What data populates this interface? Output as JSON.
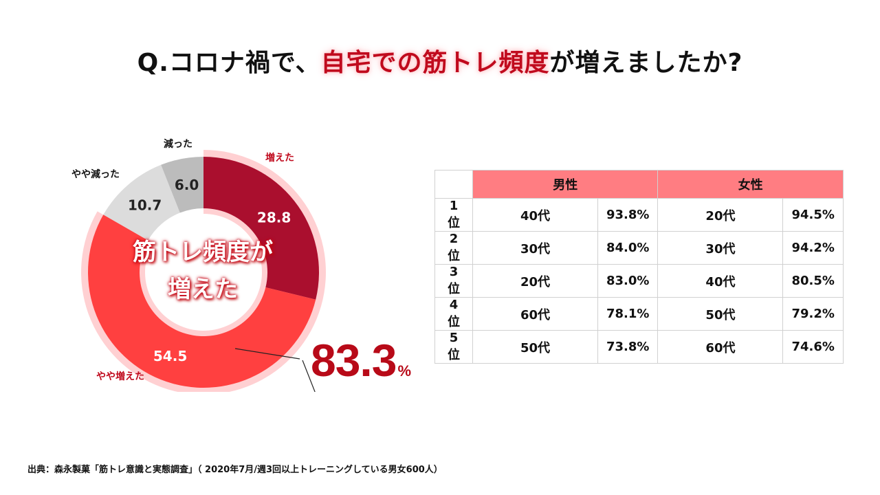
{
  "header": {
    "title_pre": "Q.コロナ禍で、",
    "title_highlight": "自宅での筋トレ頻度",
    "title_post": "が増えましたか?"
  },
  "chart_data": {
    "type": "pie",
    "variant": "donut",
    "categories": [
      "増えた",
      "やや増えた",
      "やや減った",
      "減った"
    ],
    "values": [
      28.8,
      54.5,
      10.7,
      6.0
    ],
    "value_labels": [
      "28.8",
      "54.5",
      "10.7",
      "6.0"
    ],
    "colors": [
      "#aa0f2e",
      "#ff4040",
      "#dcdcdc",
      "#bcbcbc"
    ],
    "label_colors": [
      "#c00a1d",
      "#c00a1d",
      "#111111",
      "#111111"
    ],
    "halo_color": "#ffd0d2",
    "center_text": [
      "筋トレ頻度が",
      "増えた"
    ],
    "total_value": "83.3",
    "total_unit": "%"
  },
  "table": {
    "headers": [
      "男性",
      "女性"
    ],
    "rows": [
      {
        "rank": "1位",
        "m_age": "40代",
        "m_val": "93.8%",
        "f_age": "20代",
        "f_val": "94.5%"
      },
      {
        "rank": "2位",
        "m_age": "30代",
        "m_val": "84.0%",
        "f_age": "30代",
        "f_val": "94.2%"
      },
      {
        "rank": "3位",
        "m_age": "20代",
        "m_val": "83.0%",
        "f_age": "40代",
        "f_val": "80.5%"
      },
      {
        "rank": "4位",
        "m_age": "60代",
        "m_val": "78.1%",
        "f_age": "50代",
        "f_val": "79.2%"
      },
      {
        "rank": "5位",
        "m_age": "50代",
        "m_val": "73.8%",
        "f_age": "60代",
        "f_val": "74.6%"
      }
    ]
  },
  "footer": {
    "source": "出典：森永製菓「筋トレ意識と実態調査」（ 2020年7月/週3回以上トレーニングしている男女600人）"
  }
}
